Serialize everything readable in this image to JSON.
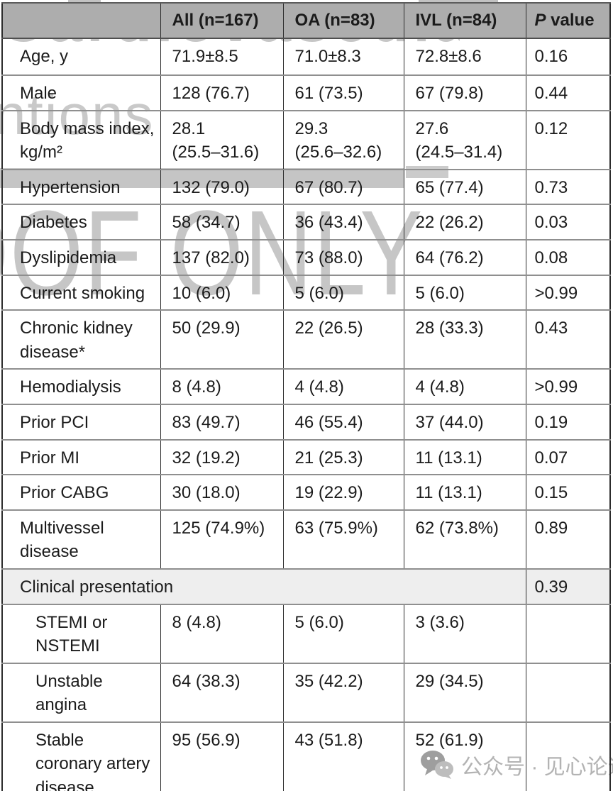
{
  "table": {
    "columns": [
      "",
      "All (n=167)",
      "OA (n=83)",
      "IVL (n=84)"
    ],
    "p_header": {
      "italic_part": "P",
      "normal_part": " value"
    },
    "rows": [
      {
        "label": "Age, y",
        "all": "71.9±8.5",
        "oa": "71.0±8.3",
        "ivl": "72.8±8.6",
        "p": "0.16"
      },
      {
        "label": "Male",
        "all": "128 (76.7)",
        "oa": "61 (73.5)",
        "ivl": "67 (79.8)",
        "p": "0.44"
      },
      {
        "label": "Body mass index,\nkg/m²",
        "all": "28.1\n(25.5–31.6)",
        "oa": "29.3\n(25.6–32.6)",
        "ivl": "27.6\n(24.5–31.4)",
        "p": "0.12"
      },
      {
        "label": "Hypertension",
        "all": "132 (79.0)",
        "oa": "67 (80.7)",
        "ivl": "65 (77.4)",
        "p": "0.73"
      },
      {
        "label": "Diabetes",
        "all": "58 (34.7)",
        "oa": "36 (43.4)",
        "ivl": "22 (26.2)",
        "p": "0.03"
      },
      {
        "label": "Dyslipidemia",
        "all": "137 (82.0)",
        "oa": "73 (88.0)",
        "ivl": "64 (76.2)",
        "p": "0.08"
      },
      {
        "label": "Current smoking",
        "all": "10 (6.0)",
        "oa": "5 (6.0)",
        "ivl": "5 (6.0)",
        "p": ">0.99"
      },
      {
        "label": "Chronic kidney\ndisease*",
        "all": "50 (29.9)",
        "oa": "22 (26.5)",
        "ivl": "28 (33.3)",
        "p": "0.43"
      },
      {
        "label": "Hemodialysis",
        "all": "8 (4.8)",
        "oa": "4 (4.8)",
        "ivl": "4 (4.8)",
        "p": ">0.99"
      },
      {
        "label": "Prior PCI",
        "all": "83 (49.7)",
        "oa": "46 (55.4)",
        "ivl": "37 (44.0)",
        "p": "0.19"
      },
      {
        "label": "Prior MI",
        "all": "32 (19.2)",
        "oa": "21 (25.3)",
        "ivl": "11 (13.1)",
        "p": "0.07"
      },
      {
        "label": "Prior CABG",
        "all": "30 (18.0)",
        "oa": "19 (22.9)",
        "ivl": "11 (13.1)",
        "p": "0.15"
      },
      {
        "label": "Multivessel\ndisease",
        "all": "125 (74.9%)",
        "oa": "63 (75.9%)",
        "ivl": "62 (73.8%)",
        "p": "0.89"
      },
      {
        "label": "Clinical presentation",
        "p": "0.39",
        "section": true
      },
      {
        "label": "STEMI or\nNSTEMI",
        "all": "8 (4.8)",
        "oa": "5 (6.0)",
        "ivl": "3 (3.6)",
        "p": "",
        "indent": true
      },
      {
        "label": "Unstable\nangina",
        "all": "64 (38.3)",
        "oa": "35 (42.2)",
        "ivl": "29 (34.5)",
        "p": "",
        "indent": true
      },
      {
        "label": "Stable\ncoronary artery\ndisease",
        "all": "95 (56.9)",
        "oa": "43 (51.8)",
        "ivl": "52 (61.9)",
        "p": "",
        "indent": true
      }
    ]
  },
  "watermarks": {
    "journal_top_fragment": "Cardiovascular",
    "journal_left_fragment": "ntions",
    "proof_text": "PROOF ONLY",
    "wechat_text": "公众号 · 见心论道"
  },
  "colors": {
    "header_bg": "#adadad",
    "section_row_bg": "#eeeeee",
    "watermark_grey": "#c6c6c6",
    "border_dark": "#2c2c2c",
    "border_grey": "#8f8f8f"
  }
}
